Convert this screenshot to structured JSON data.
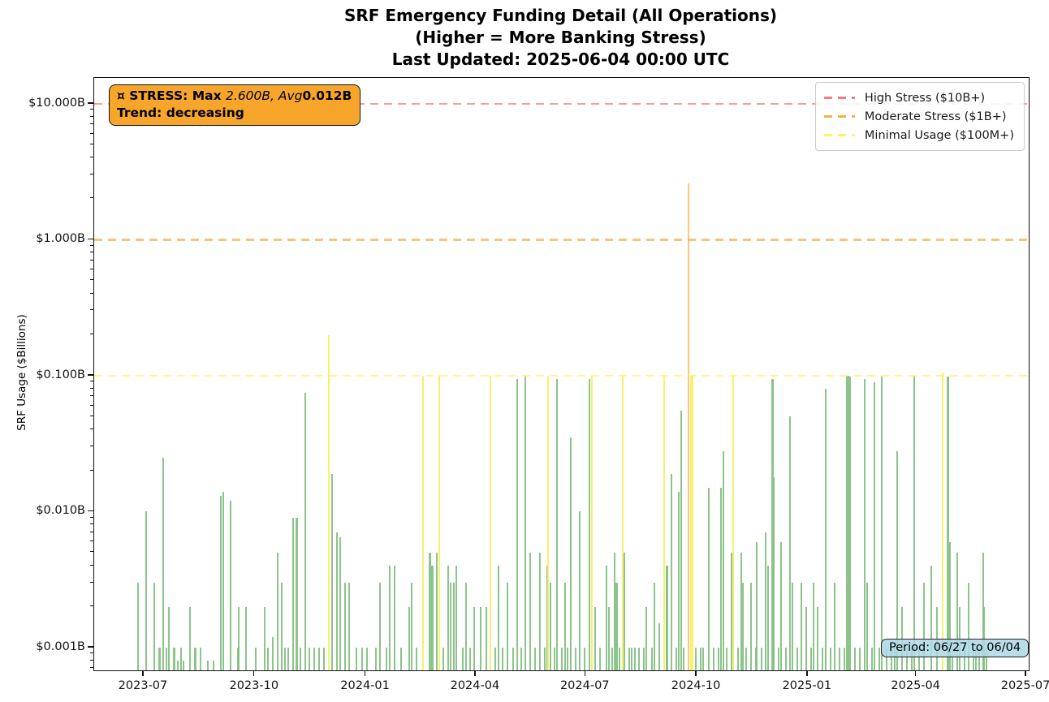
{
  "title": {
    "line1": "SRF Emergency Funding Detail (All Operations)",
    "line2": "(Higher = More Banking Stress)",
    "line3": "Last Updated: 2025-06-04 00:00 UTC"
  },
  "y_axis": {
    "label": "SRF Usage ($Billions)",
    "ticks": [
      {
        "label": "$10.000B",
        "value": 10
      },
      {
        "label": "$1.000B",
        "value": 1
      },
      {
        "label": "$0.100B",
        "value": 0.1
      },
      {
        "label": "$0.010B",
        "value": 0.01
      },
      {
        "label": "$0.001B",
        "value": 0.001
      }
    ]
  },
  "x_axis": {
    "ticks": [
      {
        "label": "2023-07",
        "date": "2023-07-01"
      },
      {
        "label": "2023-10",
        "date": "2023-10-01"
      },
      {
        "label": "2024-01",
        "date": "2024-01-01"
      },
      {
        "label": "2024-04",
        "date": "2024-04-01"
      },
      {
        "label": "2024-07",
        "date": "2024-07-01"
      },
      {
        "label": "2024-10",
        "date": "2024-10-01"
      },
      {
        "label": "2025-01",
        "date": "2025-01-01"
      },
      {
        "label": "2025-04",
        "date": "2025-04-01"
      },
      {
        "label": "2025-07",
        "date": "2025-07-01"
      }
    ]
  },
  "legend": {
    "items": [
      {
        "label": "High Stress ($10B+)",
        "color": "#f47c7c"
      },
      {
        "label": "Moderate Stress ($1B+)",
        "color": "#f5b14e"
      },
      {
        "label": "Minimal Usage ($100M+)",
        "color": "#fbf463"
      }
    ]
  },
  "annotations": {
    "stress_box": {
      "prefix": "¤ STRESS: Max ",
      "italic_part": "2.600B, Avg",
      "bold_value": "0.012B",
      "line2": "Trend: decreasing",
      "bg_color": "#F7A62B"
    },
    "period_box": {
      "text": "Period: 06/27 to 06/04",
      "bg_color": "#ADD8E6"
    }
  },
  "chart_data": {
    "type": "bar",
    "title": "SRF Emergency Funding Detail (All Operations)",
    "subtitle": "(Higher = More Banking Stress)",
    "last_updated": "2025-06-04 00:00 UTC",
    "xlabel": "",
    "ylabel": "SRF Usage ($Billions)",
    "yscale": "log",
    "ylim": [
      0.00068,
      15.5
    ],
    "xlim": [
      "2023-05-21",
      "2025-07-03"
    ],
    "grid": false,
    "legend_position": "upper right",
    "unit": "billions USD",
    "stats": {
      "max_billions": 2.6,
      "avg_billions": 0.012,
      "trend": "decreasing"
    },
    "thresholds": [
      {
        "value": 10,
        "color": "#f47c7c",
        "label": "High Stress ($10B+)"
      },
      {
        "value": 1,
        "color": "#f5b14e",
        "label": "Moderate Stress ($1B+)"
      },
      {
        "value": 0.1,
        "color": "#fbf463",
        "label": "Minimal Usage ($100M+)"
      }
    ],
    "bar_colors": {
      "g": "#7fbe7f",
      "y": "#f6ef5e",
      "o": "#ffc071"
    },
    "bars_format": [
      "date",
      "value_billions",
      "color_code(g|y|o)",
      "width_px_optional"
    ],
    "bars": [
      [
        "2023-06-26",
        0.003,
        "g"
      ],
      [
        "2023-07-03",
        0.01,
        "g"
      ],
      [
        "2023-07-10",
        0.003,
        "g"
      ],
      [
        "2023-07-14",
        0.001,
        "g",
        3
      ],
      [
        "2023-07-17",
        0.025,
        "g"
      ],
      [
        "2023-07-20",
        0.001,
        "g"
      ],
      [
        "2023-07-22",
        0.002,
        "g"
      ],
      [
        "2023-07-26",
        0.001,
        "g",
        3
      ],
      [
        "2023-07-29",
        0.0008,
        "g"
      ],
      [
        "2023-08-01",
        0.001,
        "g"
      ],
      [
        "2023-08-03",
        0.0008,
        "g"
      ],
      [
        "2023-08-08",
        0.002,
        "g"
      ],
      [
        "2023-08-13",
        0.001,
        "g",
        3
      ],
      [
        "2023-08-17",
        0.001,
        "g"
      ],
      [
        "2023-08-23",
        0.0008,
        "g"
      ],
      [
        "2023-08-28",
        0.0008,
        "g"
      ],
      [
        "2023-09-03",
        0.013,
        "g"
      ],
      [
        "2023-09-05",
        0.014,
        "g"
      ],
      [
        "2023-09-11",
        0.012,
        "g"
      ],
      [
        "2023-09-17",
        0.001,
        "g"
      ],
      [
        "2023-09-18",
        0.002,
        "g"
      ],
      [
        "2023-09-24",
        0.002,
        "g"
      ],
      [
        "2023-10-02",
        0.001,
        "g"
      ],
      [
        "2023-10-09",
        0.002,
        "g"
      ],
      [
        "2023-10-12",
        0.001,
        "g"
      ],
      [
        "2023-10-16",
        0.0012,
        "g"
      ],
      [
        "2023-10-20",
        0.005,
        "g"
      ],
      [
        "2023-10-23",
        0.003,
        "g"
      ],
      [
        "2023-10-26",
        0.001,
        "g"
      ],
      [
        "2023-10-29",
        0.001,
        "g"
      ],
      [
        "2023-11-02",
        0.009,
        "g"
      ],
      [
        "2023-11-05",
        0.009,
        "g",
        3
      ],
      [
        "2023-11-08",
        0.001,
        "g"
      ],
      [
        "2023-11-12",
        0.075,
        "g"
      ],
      [
        "2023-11-15",
        0.001,
        "g"
      ],
      [
        "2023-11-19",
        0.001,
        "g"
      ],
      [
        "2023-11-23",
        0.001,
        "g"
      ],
      [
        "2023-11-27",
        0.001,
        "g"
      ],
      [
        "2023-12-01",
        0.2,
        "y"
      ],
      [
        "2023-12-04",
        0.019,
        "g"
      ],
      [
        "2023-12-08",
        0.007,
        "g"
      ],
      [
        "2023-12-11",
        0.0065,
        "g"
      ],
      [
        "2023-12-15",
        0.003,
        "g"
      ],
      [
        "2023-12-18",
        0.003,
        "g"
      ],
      [
        "2023-12-24",
        0.001,
        "g"
      ],
      [
        "2023-12-29",
        0.001,
        "g"
      ],
      [
        "2024-01-02",
        0.001,
        "g"
      ],
      [
        "2024-01-09",
        0.001,
        "g"
      ],
      [
        "2024-01-13",
        0.003,
        "g"
      ],
      [
        "2024-01-18",
        0.001,
        "g"
      ],
      [
        "2024-01-21",
        0.004,
        "g"
      ],
      [
        "2024-01-25",
        0.004,
        "g"
      ],
      [
        "2024-01-30",
        0.001,
        "g"
      ],
      [
        "2024-02-06",
        0.002,
        "g"
      ],
      [
        "2024-02-08",
        0.003,
        "g"
      ],
      [
        "2024-02-12",
        0.001,
        "g"
      ],
      [
        "2024-02-17",
        0.1,
        "y"
      ],
      [
        "2024-02-23",
        0.005,
        "g",
        3
      ],
      [
        "2024-02-25",
        0.004,
        "g",
        3
      ],
      [
        "2024-02-29",
        0.005,
        "g"
      ],
      [
        "2024-03-02",
        0.1,
        "y"
      ],
      [
        "2024-03-05",
        0.001,
        "g"
      ],
      [
        "2024-03-09",
        0.004,
        "g"
      ],
      [
        "2024-03-11",
        0.003,
        "g"
      ],
      [
        "2024-03-14",
        0.003,
        "g"
      ],
      [
        "2024-03-16",
        0.004,
        "g"
      ],
      [
        "2024-03-21",
        0.001,
        "g"
      ],
      [
        "2024-03-24",
        0.003,
        "g"
      ],
      [
        "2024-03-27",
        0.001,
        "g"
      ],
      [
        "2024-03-31",
        0.002,
        "g"
      ],
      [
        "2024-04-05",
        0.002,
        "g"
      ],
      [
        "2024-04-10",
        0.002,
        "g"
      ],
      [
        "2024-04-13",
        0.1,
        "y"
      ],
      [
        "2024-04-17",
        0.001,
        "g"
      ],
      [
        "2024-04-20",
        0.004,
        "g"
      ],
      [
        "2024-04-23",
        0.001,
        "g"
      ],
      [
        "2024-04-27",
        0.003,
        "g"
      ],
      [
        "2024-05-02",
        0.001,
        "g"
      ],
      [
        "2024-05-05",
        0.095,
        "g"
      ],
      [
        "2024-05-09",
        0.001,
        "g"
      ],
      [
        "2024-05-12",
        0.098,
        "g"
      ],
      [
        "2024-05-16",
        0.005,
        "g"
      ],
      [
        "2024-05-20",
        0.001,
        "g"
      ],
      [
        "2024-05-24",
        0.005,
        "g"
      ],
      [
        "2024-05-28",
        0.001,
        "g"
      ],
      [
        "2024-05-30",
        0.004,
        "g"
      ],
      [
        "2024-05-31",
        0.1,
        "y"
      ],
      [
        "2024-06-02",
        0.003,
        "g"
      ],
      [
        "2024-06-05",
        0.001,
        "g"
      ],
      [
        "2024-06-07",
        0.095,
        "g"
      ],
      [
        "2024-06-11",
        0.001,
        "g"
      ],
      [
        "2024-06-14",
        0.003,
        "g"
      ],
      [
        "2024-06-16",
        0.001,
        "g"
      ],
      [
        "2024-06-19",
        0.035,
        "g"
      ],
      [
        "2024-06-23",
        0.001,
        "g"
      ],
      [
        "2024-06-26",
        0.01,
        "g"
      ],
      [
        "2024-06-30",
        0.001,
        "g"
      ],
      [
        "2024-07-04",
        0.095,
        "g"
      ],
      [
        "2024-07-06",
        0.1,
        "y"
      ],
      [
        "2024-07-09",
        0.002,
        "g"
      ],
      [
        "2024-07-13",
        0.001,
        "g"
      ],
      [
        "2024-07-18",
        0.004,
        "g"
      ],
      [
        "2024-07-20",
        0.002,
        "g"
      ],
      [
        "2024-07-23",
        0.001,
        "g"
      ],
      [
        "2024-07-25",
        0.005,
        "g"
      ],
      [
        "2024-07-27",
        0.003,
        "g",
        3
      ],
      [
        "2024-07-29",
        0.001,
        "g"
      ],
      [
        "2024-08-01",
        0.1,
        "y"
      ],
      [
        "2024-08-02",
        0.005,
        "g"
      ],
      [
        "2024-08-06",
        0.001,
        "g"
      ],
      [
        "2024-08-08",
        0.001,
        "g"
      ],
      [
        "2024-08-11",
        0.001,
        "g"
      ],
      [
        "2024-08-14",
        0.001,
        "g"
      ],
      [
        "2024-08-18",
        0.001,
        "g"
      ],
      [
        "2024-08-20",
        0.002,
        "g"
      ],
      [
        "2024-08-25",
        0.001,
        "g"
      ],
      [
        "2024-08-27",
        0.003,
        "g"
      ],
      [
        "2024-08-31",
        0.0015,
        "g"
      ],
      [
        "2024-09-04",
        0.1,
        "y"
      ],
      [
        "2024-09-06",
        0.004,
        "g"
      ],
      [
        "2024-09-07",
        0.004,
        "g"
      ],
      [
        "2024-09-10",
        0.019,
        "g"
      ],
      [
        "2024-09-14",
        0.001,
        "g"
      ],
      [
        "2024-09-16",
        0.014,
        "g"
      ],
      [
        "2024-09-18",
        0.055,
        "g"
      ],
      [
        "2024-09-20",
        0.001,
        "g"
      ],
      [
        "2024-09-24",
        2.6,
        "o"
      ],
      [
        "2024-09-27",
        0.1,
        "y",
        4
      ],
      [
        "2024-09-30",
        0.001,
        "g"
      ],
      [
        "2024-10-04",
        0.001,
        "g"
      ],
      [
        "2024-10-06",
        0.001,
        "g"
      ],
      [
        "2024-10-11",
        0.015,
        "g"
      ],
      [
        "2024-10-15",
        0.001,
        "g"
      ],
      [
        "2024-10-19",
        0.001,
        "g"
      ],
      [
        "2024-10-21",
        0.015,
        "g"
      ],
      [
        "2024-10-23",
        0.028,
        "g"
      ],
      [
        "2024-10-26",
        0.001,
        "g"
      ],
      [
        "2024-10-30",
        0.005,
        "g"
      ],
      [
        "2024-10-31",
        0.1,
        "y"
      ],
      [
        "2024-11-04",
        0.001,
        "g"
      ],
      [
        "2024-11-07",
        0.005,
        "g"
      ],
      [
        "2024-11-08",
        0.003,
        "g"
      ],
      [
        "2024-11-11",
        0.001,
        "g"
      ],
      [
        "2024-11-15",
        0.003,
        "g"
      ],
      [
        "2024-11-19",
        0.001,
        "g"
      ],
      [
        "2024-11-20",
        0.006,
        "g"
      ],
      [
        "2024-11-24",
        0.001,
        "g"
      ],
      [
        "2024-11-27",
        0.007,
        "g"
      ],
      [
        "2024-11-29",
        0.004,
        "g"
      ],
      [
        "2024-12-03",
        0.095,
        "g",
        3
      ],
      [
        "2024-12-04",
        0.018,
        "g"
      ],
      [
        "2024-12-08",
        0.001,
        "g"
      ],
      [
        "2024-12-10",
        0.006,
        "g"
      ],
      [
        "2024-12-14",
        0.001,
        "g"
      ],
      [
        "2024-12-17",
        0.05,
        "g"
      ],
      [
        "2024-12-19",
        0.003,
        "g"
      ],
      [
        "2024-12-23",
        0.001,
        "g"
      ],
      [
        "2024-12-27",
        0.003,
        "g"
      ],
      [
        "2024-12-31",
        0.002,
        "g"
      ],
      [
        "2025-01-04",
        0.001,
        "g"
      ],
      [
        "2025-01-06",
        0.003,
        "g"
      ],
      [
        "2025-01-09",
        0.002,
        "g"
      ],
      [
        "2025-01-13",
        0.001,
        "g"
      ],
      [
        "2025-01-16",
        0.08,
        "g"
      ],
      [
        "2025-01-20",
        0.001,
        "g"
      ],
      [
        "2025-01-23",
        0.003,
        "g"
      ],
      [
        "2025-01-27",
        0.001,
        "g"
      ],
      [
        "2025-01-31",
        0.001,
        "g"
      ],
      [
        "2025-02-03",
        0.1,
        "g",
        4
      ],
      [
        "2025-02-05",
        0.098,
        "g"
      ],
      [
        "2025-02-09",
        0.001,
        "g"
      ],
      [
        "2025-02-13",
        0.001,
        "g"
      ],
      [
        "2025-02-17",
        0.095,
        "g"
      ],
      [
        "2025-02-19",
        0.003,
        "g"
      ],
      [
        "2025-02-23",
        0.001,
        "g"
      ],
      [
        "2025-02-25",
        0.09,
        "g"
      ],
      [
        "2025-03-01",
        0.001,
        "g"
      ],
      [
        "2025-03-03",
        0.098,
        "g"
      ],
      [
        "2025-03-07",
        0.001,
        "g"
      ],
      [
        "2025-03-11",
        0.001,
        "g"
      ],
      [
        "2025-03-14",
        0.001,
        "g"
      ],
      [
        "2025-03-16",
        0.028,
        "g"
      ],
      [
        "2025-03-20",
        0.002,
        "g"
      ],
      [
        "2025-03-24",
        0.001,
        "g"
      ],
      [
        "2025-03-28",
        0.001,
        "g"
      ],
      [
        "2025-03-30",
        0.1,
        "g"
      ],
      [
        "2025-04-03",
        0.001,
        "g"
      ],
      [
        "2025-04-07",
        0.003,
        "g"
      ],
      [
        "2025-04-13",
        0.004,
        "g"
      ],
      [
        "2025-04-18",
        0.002,
        "g"
      ],
      [
        "2025-04-23",
        0.105,
        "y"
      ],
      [
        "2025-04-27",
        0.098,
        "g",
        3
      ],
      [
        "2025-04-29",
        0.006,
        "g"
      ],
      [
        "2025-05-01",
        0.001,
        "g"
      ],
      [
        "2025-05-05",
        0.005,
        "g"
      ],
      [
        "2025-05-07",
        0.002,
        "g"
      ],
      [
        "2025-05-11",
        0.001,
        "g"
      ],
      [
        "2025-05-14",
        0.003,
        "g"
      ],
      [
        "2025-05-18",
        0.001,
        "g"
      ],
      [
        "2025-05-20",
        0.001,
        "g"
      ],
      [
        "2025-05-23",
        0.001,
        "g"
      ],
      [
        "2025-05-26",
        0.005,
        "g"
      ],
      [
        "2025-05-27",
        0.002,
        "g"
      ],
      [
        "2025-05-29",
        0.001,
        "g"
      ]
    ]
  }
}
